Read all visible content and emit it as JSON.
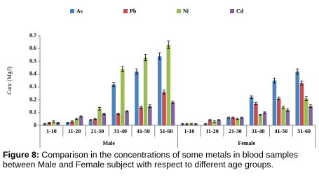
{
  "chart_data": {
    "type": "bar",
    "y_label": "Conc (Mg/l)",
    "categories": [
      "1-10",
      "11-20",
      "21-30",
      "31-40",
      "41-50",
      "51-60",
      "1-10",
      "11-20",
      "21-30",
      "31-40",
      "41-50",
      "51-60"
    ],
    "groups": [
      {
        "name": "Male",
        "size": 6
      },
      {
        "name": "Female",
        "size": 6
      }
    ],
    "series": [
      {
        "name": "As",
        "color": "#4f81bd",
        "values": [
          0.01,
          0.02,
          0.04,
          0.32,
          0.42,
          0.54,
          0.01,
          0.01,
          0.06,
          0.22,
          0.35,
          0.42
        ],
        "errors": [
          0.005,
          0.005,
          0.005,
          0.015,
          0.02,
          0.025,
          0.005,
          0.005,
          0.005,
          0.01,
          0.02,
          0.02
        ]
      },
      {
        "name": "Pb",
        "color": "#c0504d",
        "values": [
          0.02,
          0.03,
          0.05,
          0.09,
          0.14,
          0.26,
          0.01,
          0.04,
          0.06,
          0.17,
          0.21,
          0.33
        ],
        "errors": [
          0.005,
          0.005,
          0.005,
          0.005,
          0.01,
          0.015,
          0.005,
          0.005,
          0.005,
          0.01,
          0.01,
          0.015
        ]
      },
      {
        "name": "Ni",
        "color": "#9bbb59",
        "values": [
          0.03,
          0.05,
          0.13,
          0.44,
          0.53,
          0.63,
          0.01,
          0.03,
          0.05,
          0.08,
          0.14,
          0.21
        ],
        "errors": [
          0.005,
          0.005,
          0.01,
          0.02,
          0.025,
          0.03,
          0.005,
          0.005,
          0.005,
          0.005,
          0.01,
          0.015
        ]
      },
      {
        "name": "Cd",
        "color": "#8064a2",
        "values": [
          0.02,
          0.07,
          0.09,
          0.11,
          0.15,
          0.18,
          0.01,
          0.04,
          0.06,
          0.1,
          0.12,
          0.15
        ],
        "errors": [
          0.005,
          0.005,
          0.005,
          0.005,
          0.01,
          0.01,
          0.005,
          0.005,
          0.005,
          0.005,
          0.01,
          0.01
        ]
      }
    ],
    "ylim": [
      0,
      0.7
    ],
    "yticks": [
      0,
      0.1,
      0.2,
      0.3,
      0.4,
      0.5,
      0.6,
      0.7
    ]
  },
  "caption": {
    "label": "Figure 8:",
    "text": "Comparison in the concentrations of  some metals  in blood samples between  Male and Female subject with respect to different age groups."
  }
}
